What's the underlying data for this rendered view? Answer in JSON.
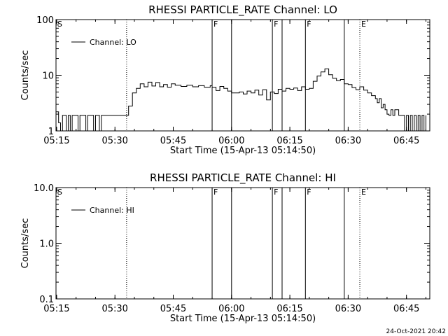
{
  "footer": {
    "timestamp": "24-Oct-2021 20:42"
  },
  "chart_data": [
    {
      "type": "line",
      "title": "RHESSI PARTICLE_RATE Channel: LO",
      "xlabel": "Start Time (15-Apr-13 05:14:50)",
      "ylabel": "Counts/sec",
      "yscale": "log",
      "xlim": [
        "05:14:50",
        "06:51:00"
      ],
      "ylim": [
        1,
        100
      ],
      "x_ticks": [
        "05:15",
        "05:30",
        "05:45",
        "06:00",
        "06:15",
        "06:30",
        "06:45"
      ],
      "y_ticks": [
        {
          "value": 100,
          "label": "100"
        },
        {
          "value": 10,
          "label": "10"
        },
        {
          "value": 1,
          "label": "1"
        }
      ],
      "legend": "top-left",
      "series": [
        {
          "name": "Channel: LO",
          "color": "#000000",
          "x": [
            "05:14:50",
            "05:15:30",
            "05:16:00",
            "05:16:30",
            "05:17:00",
            "05:17:30",
            "05:18:00",
            "05:18:30",
            "05:19:00",
            "05:19:30",
            "05:20:00",
            "05:20:30",
            "05:21:00",
            "05:21:30",
            "05:22:00",
            "05:22:30",
            "05:23:00",
            "05:23:30",
            "05:24:00",
            "05:24:30",
            "05:25:00",
            "05:25:30",
            "05:26:00",
            "05:26:30",
            "05:27:00",
            "05:30:00",
            "05:33:00",
            "05:33:30",
            "05:34:30",
            "05:35:30",
            "05:36:30",
            "05:37:30",
            "05:38:30",
            "05:39:30",
            "05:40:30",
            "05:41:30",
            "05:42:30",
            "05:43:30",
            "05:44:30",
            "05:45:30",
            "05:47:00",
            "05:48:30",
            "05:50:00",
            "05:51:30",
            "05:53:00",
            "05:54:30",
            "05:55:00",
            "05:56:00",
            "05:57:00",
            "05:58:00",
            "05:59:00",
            "06:00:00",
            "06:01:00",
            "06:02:00",
            "06:03:00",
            "06:04:00",
            "06:05:00",
            "06:06:00",
            "06:07:00",
            "06:08:00",
            "06:09:00",
            "06:10:00",
            "06:11:00",
            "06:12:00",
            "06:13:00",
            "06:14:00",
            "06:15:00",
            "06:16:00",
            "06:17:00",
            "06:18:00",
            "06:19:00",
            "06:20:00",
            "06:21:00",
            "06:22:00",
            "06:23:00",
            "06:24:00",
            "06:25:00",
            "06:26:00",
            "06:27:00",
            "06:28:00",
            "06:29:00",
            "06:30:00",
            "06:31:00",
            "06:32:00",
            "06:33:00",
            "06:34:00",
            "06:35:00",
            "06:36:00",
            "06:37:00",
            "06:37:30",
            "06:38:00",
            "06:38:30",
            "06:39:00",
            "06:39:30",
            "06:40:00",
            "06:40:30",
            "06:41:00",
            "06:41:30",
            "06:42:00",
            "06:43:00",
            "06:44:00",
            "06:44:30",
            "06:45:00",
            "06:45:30",
            "06:46:00",
            "06:46:30",
            "06:47:00",
            "06:47:30",
            "06:48:00",
            "06:48:30",
            "06:49:00",
            "06:49:30",
            "06:50:00"
          ],
          "y": [
            2.2,
            1.4,
            1.0,
            1.9,
            1.9,
            1.0,
            1.9,
            1.0,
            1.9,
            1.9,
            1.9,
            1.0,
            1.9,
            1.9,
            1.9,
            1.0,
            1.9,
            1.9,
            1.9,
            1.0,
            1.9,
            1.9,
            1.0,
            1.9,
            1.9,
            1.9,
            1.9,
            2.8,
            4.8,
            5.8,
            7.0,
            6.2,
            7.5,
            6.4,
            7.4,
            6.2,
            6.8,
            6.1,
            7.0,
            6.6,
            6.3,
            6.6,
            6.2,
            6.5,
            6.1,
            6.5,
            6.1,
            5.3,
            6.3,
            5.8,
            5.2,
            4.8,
            4.8,
            5.0,
            4.6,
            5.2,
            4.8,
            5.4,
            4.4,
            5.5,
            3.6,
            5.0,
            4.7,
            5.6,
            5.2,
            5.8,
            5.6,
            5.9,
            5.3,
            6.2,
            5.6,
            5.8,
            7.8,
            9.7,
            11.5,
            13.0,
            10.2,
            8.8,
            8.0,
            8.4,
            7.0,
            6.8,
            6.0,
            5.5,
            6.2,
            5.4,
            4.8,
            4.3,
            3.8,
            3.2,
            3.8,
            2.6,
            3.0,
            2.4,
            2.0,
            1.9,
            2.4,
            1.9,
            2.4,
            1.9,
            1.9,
            1.0,
            1.9,
            1.0,
            1.9,
            1.0,
            1.9,
            1.0,
            1.9,
            1.0,
            1.9,
            1.0,
            1.9
          ]
        }
      ],
      "vlines": [
        {
          "time": "05:14:50",
          "label": "S",
          "style": "solid"
        },
        {
          "time": "05:33:00",
          "label": "",
          "style": "dotted"
        },
        {
          "time": "05:55:00",
          "label": "F",
          "style": "solid"
        },
        {
          "time": "06:00:00",
          "label": "",
          "style": "solid"
        },
        {
          "time": "06:10:30",
          "label": "F",
          "style": "solid"
        },
        {
          "time": "06:13:00",
          "label": "",
          "style": "solid"
        },
        {
          "time": "06:19:00",
          "label": "F",
          "style": "solid"
        },
        {
          "time": "06:29:00",
          "label": "",
          "style": "solid"
        },
        {
          "time": "06:33:00",
          "label": "E",
          "style": "dotted"
        },
        {
          "time": "06:51:00",
          "label": "",
          "style": "dotted"
        }
      ]
    },
    {
      "type": "line",
      "title": "RHESSI PARTICLE_RATE Channel: HI",
      "xlabel": "Start Time (15-Apr-13 05:14:50)",
      "ylabel": "Counts/sec",
      "yscale": "log",
      "xlim": [
        "05:14:50",
        "06:51:00"
      ],
      "ylim": [
        0.1,
        10
      ],
      "x_ticks": [
        "05:15",
        "05:30",
        "05:45",
        "06:00",
        "06:15",
        "06:30",
        "06:45"
      ],
      "y_ticks": [
        {
          "value": 10,
          "label": "10.0"
        },
        {
          "value": 1,
          "label": "1.0"
        },
        {
          "value": 0.1,
          "label": "0.1"
        }
      ],
      "legend": "top-left",
      "series": [
        {
          "name": "Channel: HI",
          "color": "#000000",
          "x": [],
          "y": []
        }
      ],
      "vlines": [
        {
          "time": "05:14:50",
          "label": "S",
          "style": "solid"
        },
        {
          "time": "05:33:00",
          "label": "",
          "style": "dotted"
        },
        {
          "time": "05:55:00",
          "label": "F",
          "style": "solid"
        },
        {
          "time": "06:00:00",
          "label": "",
          "style": "solid"
        },
        {
          "time": "06:10:30",
          "label": "F",
          "style": "solid"
        },
        {
          "time": "06:13:00",
          "label": "",
          "style": "solid"
        },
        {
          "time": "06:19:00",
          "label": "F",
          "style": "solid"
        },
        {
          "time": "06:29:00",
          "label": "",
          "style": "solid"
        },
        {
          "time": "06:33:00",
          "label": "E",
          "style": "dotted"
        },
        {
          "time": "06:51:00",
          "label": "",
          "style": "dotted"
        }
      ]
    }
  ]
}
